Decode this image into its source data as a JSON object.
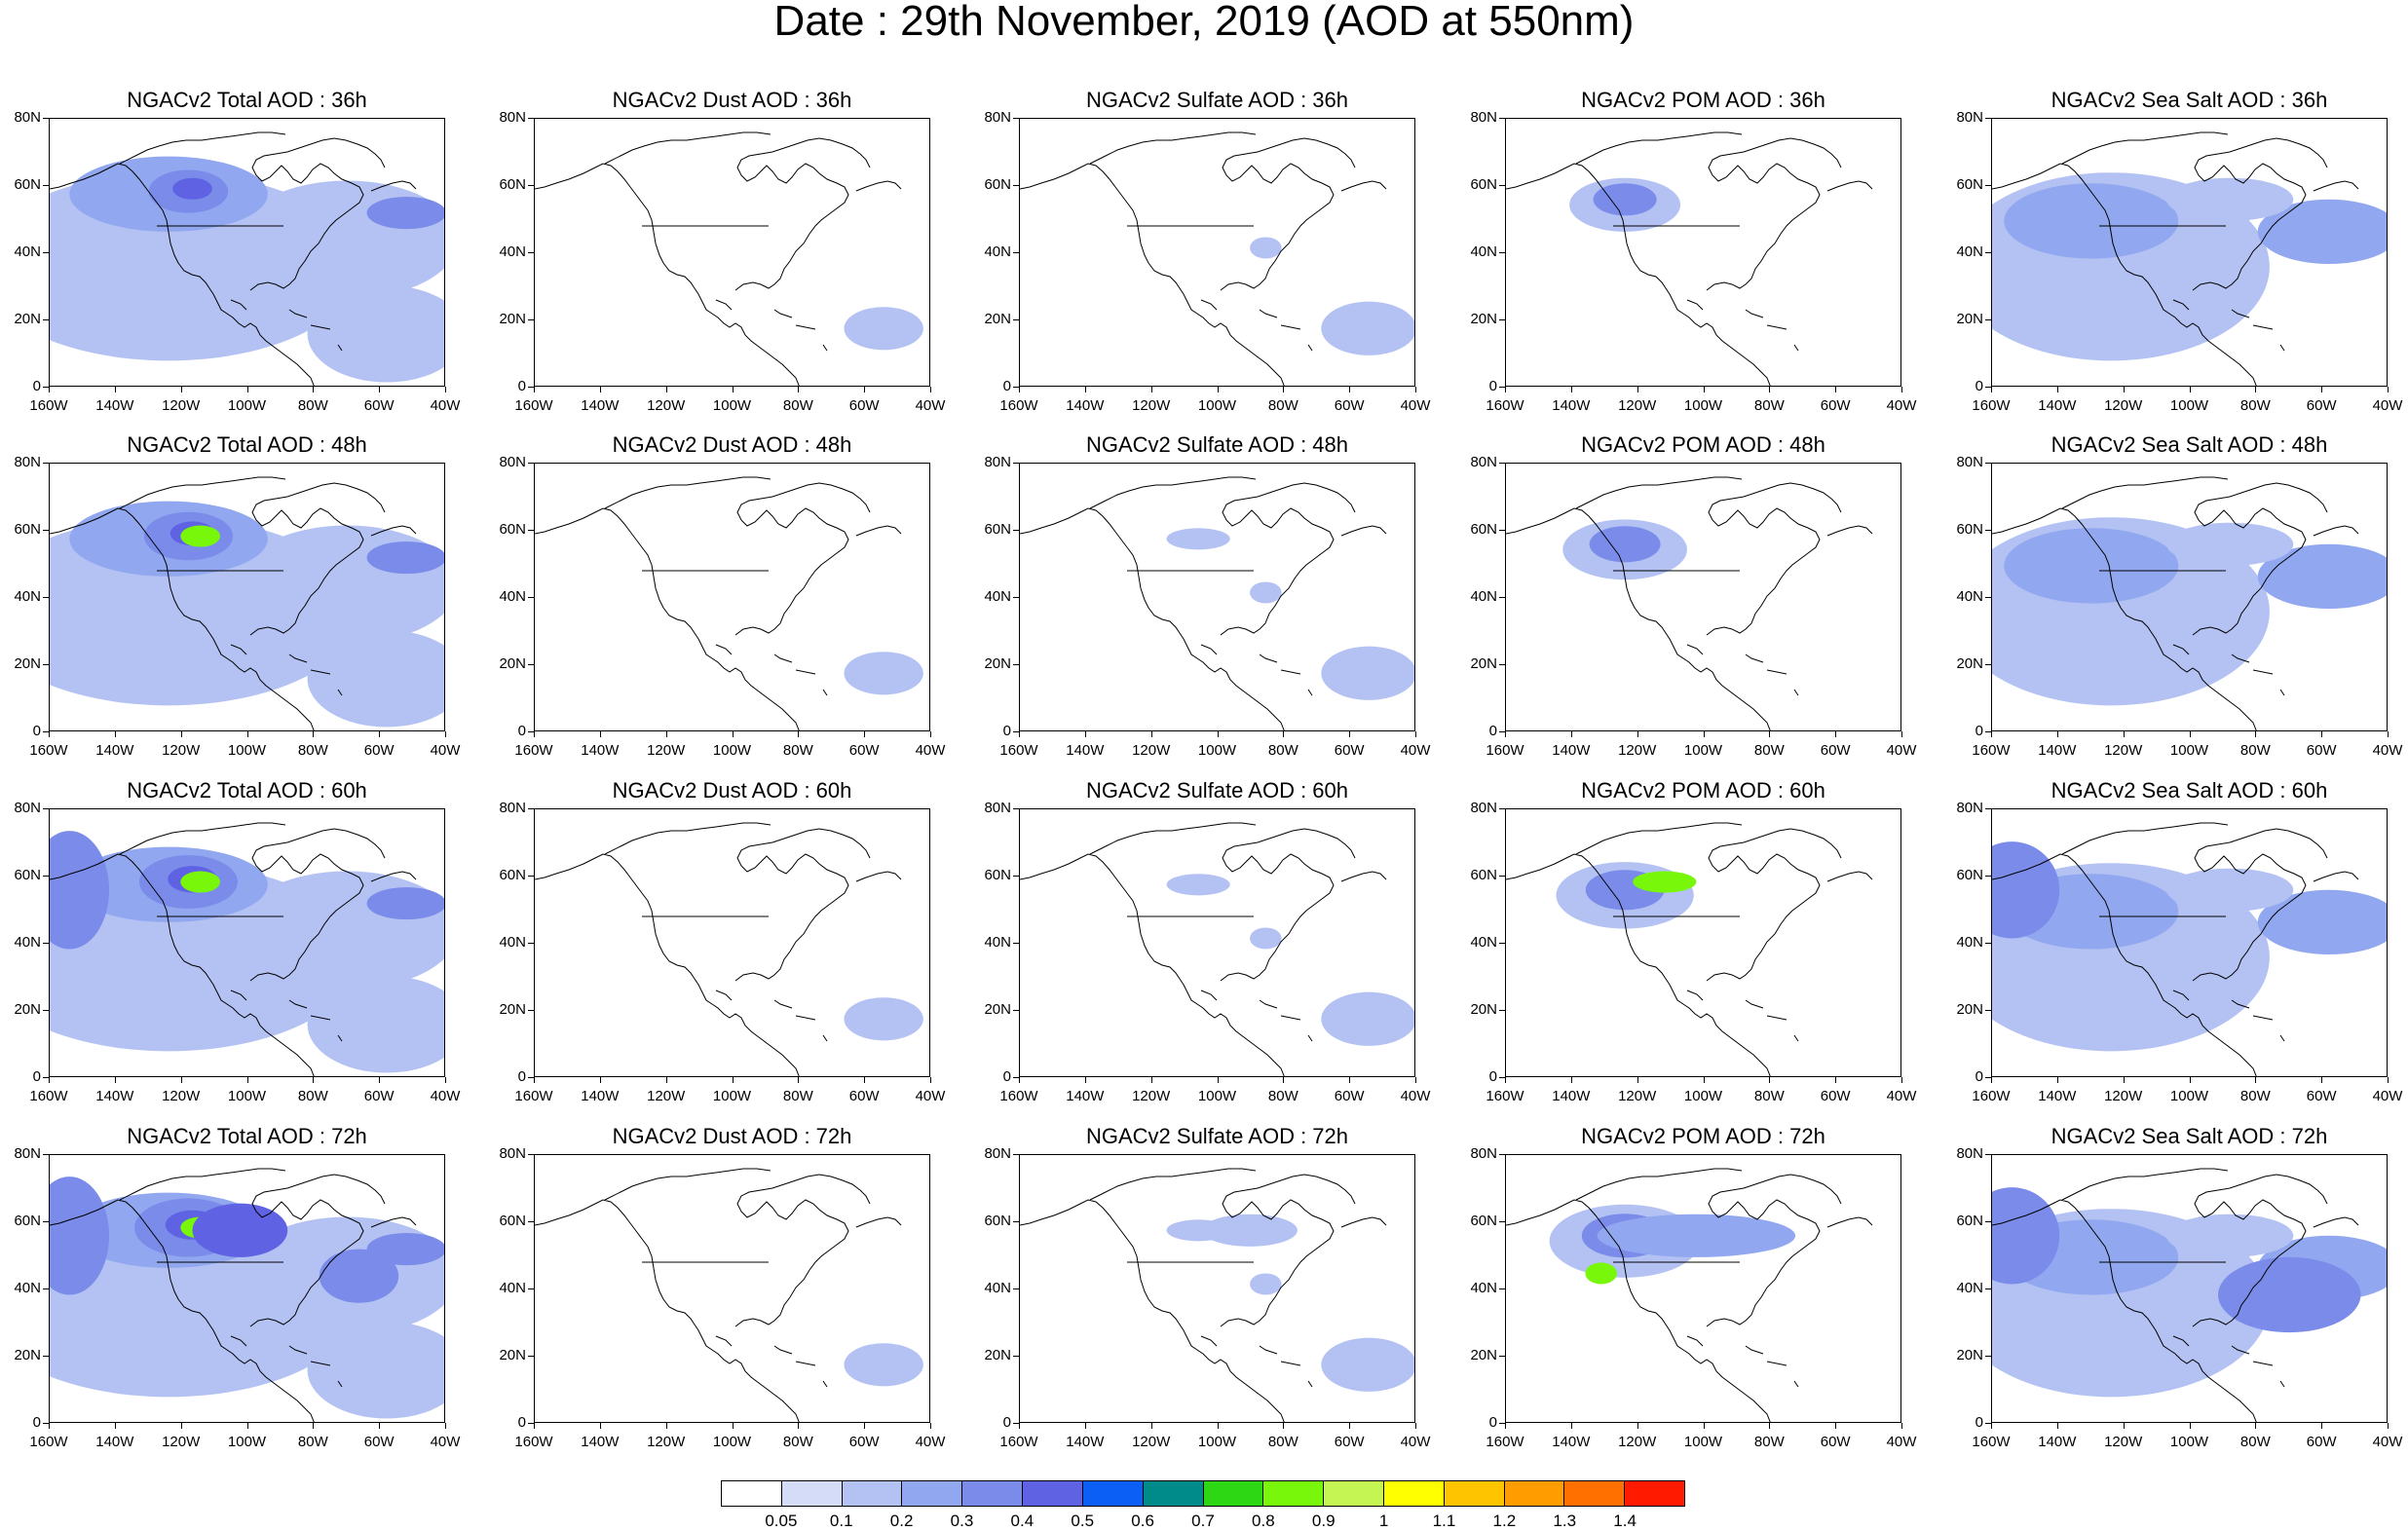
{
  "title": "Date : 29th November, 2019 (AOD at 550nm)",
  "panels": [
    [
      "NGACv2 Total AOD : 36h",
      "NGACv2 Dust AOD : 36h",
      "NGACv2 Sulfate AOD : 36h",
      "NGACv2 POM AOD : 36h",
      "NGACv2 Sea Salt AOD : 36h"
    ],
    [
      "NGACv2 Total AOD : 48h",
      "NGACv2 Dust AOD : 48h",
      "NGACv2 Sulfate AOD : 48h",
      "NGACv2 POM AOD : 48h",
      "NGACv2 Sea Salt AOD : 48h"
    ],
    [
      "NGACv2 Total AOD : 60h",
      "NGACv2 Dust AOD : 60h",
      "NGACv2 Sulfate AOD : 60h",
      "NGACv2 POM AOD : 60h",
      "NGACv2 Sea Salt AOD : 60h"
    ],
    [
      "NGACv2 Total AOD : 72h",
      "NGACv2 Dust AOD : 72h",
      "NGACv2 Sulfate AOD : 72h",
      "NGACv2 POM AOD : 72h",
      "NGACv2 Sea Salt  AOD : 72h"
    ]
  ],
  "axes": {
    "y_ticks": [
      "80N",
      "60N",
      "40N",
      "20N",
      "0"
    ],
    "x_ticks": [
      "160W",
      "140W",
      "120W",
      "100W",
      "80W",
      "60W",
      "40W"
    ],
    "lat_range": [
      0,
      80
    ],
    "lon_range": [
      -160,
      -40
    ]
  },
  "colorbar": {
    "labels": [
      "0.05",
      "0.1",
      "0.2",
      "0.3",
      "0.4",
      "0.5",
      "0.6",
      "0.7",
      "0.8",
      "0.9",
      "1",
      "1.1",
      "1.2",
      "1.3",
      "1.4"
    ],
    "colors": [
      "#ffffff",
      "#d4dcf8",
      "#b3c2f3",
      "#91a7ef",
      "#7a8bea",
      "#5f63e3",
      "#0c5ff4",
      "#008b8b",
      "#2ed713",
      "#79f70b",
      "#c5f552",
      "#ffff00",
      "#ffc400",
      "#ff9c00",
      "#ff7000",
      "#ff1a00"
    ]
  }
}
